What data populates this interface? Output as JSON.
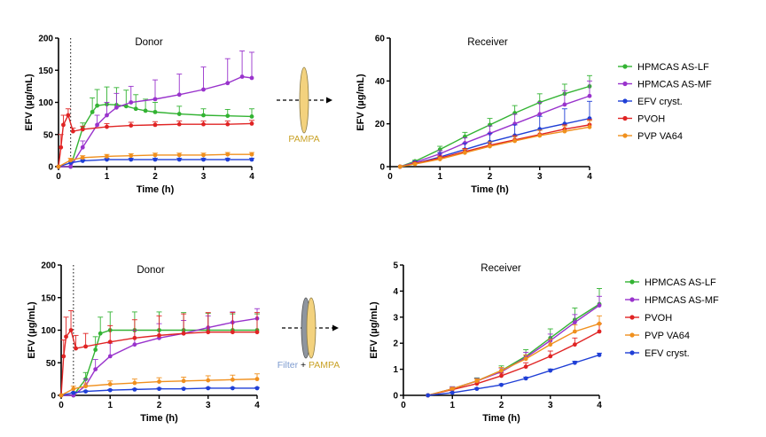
{
  "schematics": [
    {
      "label_parts": [
        {
          "text": "PAMPA",
          "color": "#c9a227"
        }
      ],
      "filter": false
    },
    {
      "label_parts": [
        {
          "text": "Filter",
          "color": "#7d9bcf"
        },
        {
          "text": " + ",
          "color": "#000000"
        },
        {
          "text": "PAMPA",
          "color": "#c9a227"
        }
      ],
      "filter": true
    }
  ],
  "legends": [
    [
      "HPMCAS AS-LF",
      "HPMCAS AS-MF",
      "EFV cryst.",
      "PVOH",
      "PVP VA64"
    ],
    [
      "HPMCAS AS-LF",
      "HPMCAS AS-MF",
      "PVOH",
      "PVP VA64",
      "EFV cryst."
    ]
  ],
  "colors": {
    "HPMCAS AS-LF": "#33b333",
    "HPMCAS AS-MF": "#9933cc",
    "EFV cryst.": "#1f3fd6",
    "PVOH": "#e02424",
    "PVP VA64": "#f0901e"
  },
  "chart_data": [
    {
      "type": "line",
      "title": "Donor",
      "xlabel": "Time (h)",
      "ylabel": "EFV (µg/mL)",
      "xlim": [
        0,
        4
      ],
      "ylim": [
        0,
        200
      ],
      "xticks": [
        0,
        1,
        2,
        3,
        4
      ],
      "yticks": [
        0,
        50,
        100,
        150,
        200
      ],
      "xticklabels": [
        "0",
        "1",
        "2",
        "3",
        "4"
      ],
      "yticklabels": [
        "0",
        "50",
        "100",
        "150",
        "200"
      ],
      "vline_x": 0.25,
      "series": [
        {
          "name": "HPMCAS AS-LF",
          "x": [
            0.0,
            0.25,
            0.5,
            0.7,
            0.8,
            1.0,
            1.2,
            1.4,
            1.6,
            1.8,
            2.0,
            2.5,
            3.0,
            3.5,
            4.0
          ],
          "y": [
            0,
            0,
            60,
            85,
            95,
            97,
            96,
            94,
            90,
            87,
            85,
            82,
            80,
            79,
            78
          ],
          "err": [
            0,
            0,
            8,
            22,
            25,
            27,
            27,
            25,
            22,
            18,
            15,
            12,
            10,
            10,
            12
          ]
        },
        {
          "name": "HPMCAS AS-MF",
          "x": [
            0.0,
            0.25,
            0.5,
            0.8,
            1.0,
            1.2,
            1.5,
            2.0,
            2.5,
            3.0,
            3.5,
            3.8,
            4.0
          ],
          "y": [
            0,
            0,
            30,
            65,
            80,
            92,
            100,
            105,
            112,
            120,
            130,
            140,
            138
          ],
          "err": [
            0,
            0,
            10,
            15,
            20,
            22,
            25,
            30,
            32,
            35,
            38,
            40,
            40
          ]
        },
        {
          "name": "EFV cryst.",
          "x": [
            0.0,
            0.25,
            0.5,
            1.0,
            1.5,
            2.0,
            2.5,
            3.0,
            3.5,
            4.0
          ],
          "y": [
            0,
            6,
            9,
            11,
            11,
            11,
            11,
            11,
            11,
            11
          ],
          "err": [
            0,
            2,
            2,
            2,
            2,
            2,
            2,
            2,
            2,
            2
          ]
        },
        {
          "name": "PVOH",
          "x": [
            0.0,
            0.05,
            0.1,
            0.2,
            0.3,
            0.5,
            1.0,
            1.5,
            2.0,
            2.5,
            3.0,
            3.5,
            4.0
          ],
          "y": [
            0,
            30,
            65,
            80,
            55,
            58,
            62,
            64,
            65,
            66,
            66,
            66,
            67
          ],
          "err": [
            0,
            20,
            15,
            10,
            5,
            5,
            5,
            5,
            5,
            5,
            5,
            5,
            5
          ]
        },
        {
          "name": "PVP VA64",
          "x": [
            0.0,
            0.25,
            0.5,
            1.0,
            1.5,
            2.0,
            2.5,
            3.0,
            3.5,
            4.0
          ],
          "y": [
            0,
            10,
            14,
            16,
            17,
            18,
            18,
            18,
            19,
            19
          ],
          "err": [
            0,
            3,
            3,
            3,
            3,
            3,
            3,
            3,
            3,
            3
          ]
        }
      ]
    },
    {
      "type": "line",
      "title": "Receiver",
      "xlabel": "Time (h)",
      "ylabel": "EFV (µg/mL)",
      "xlim": [
        0,
        4
      ],
      "ylim": [
        0,
        60
      ],
      "xticks": [
        0,
        1,
        2,
        3,
        4
      ],
      "yticks": [
        0,
        20,
        40,
        60
      ],
      "xticklabels": [
        "0",
        "1",
        "2",
        "3",
        "4"
      ],
      "yticklabels": [
        "0",
        "20",
        "40",
        "60"
      ],
      "series": [
        {
          "name": "HPMCAS AS-LF",
          "x": [
            0.2,
            0.5,
            1.0,
            1.5,
            2.0,
            2.5,
            3.0,
            3.5,
            4.0
          ],
          "y": [
            0,
            2.5,
            8,
            14,
            19.5,
            25,
            30,
            34,
            37.5
          ],
          "err": [
            0,
            0.5,
            1.5,
            2,
            3,
            3.5,
            4,
            4.5,
            5
          ]
        },
        {
          "name": "HPMCAS AS-MF",
          "x": [
            0.2,
            0.5,
            1.0,
            1.5,
            2.0,
            2.5,
            3.0,
            3.5,
            4.0
          ],
          "y": [
            0,
            2,
            6,
            11,
            15.5,
            20,
            24.5,
            29,
            33
          ],
          "err": [
            0,
            0.5,
            1.5,
            2.5,
            3.5,
            4.5,
            5.5,
            6.5,
            7
          ]
        },
        {
          "name": "EFV cryst.",
          "x": [
            0.2,
            0.5,
            1.0,
            1.5,
            2.0,
            2.5,
            3.0,
            3.5,
            4.0
          ],
          "y": [
            0,
            1.5,
            4.5,
            8,
            11.5,
            14.5,
            17.5,
            20,
            22.5
          ],
          "err": [
            0,
            1,
            2,
            3,
            4,
            5,
            6,
            7,
            8
          ]
        },
        {
          "name": "PVOH",
          "x": [
            0.2,
            0.5,
            1.0,
            1.5,
            2.0,
            2.5,
            3.0,
            3.5,
            4.0
          ],
          "y": [
            0,
            1.5,
            4,
            7,
            10,
            12.5,
            15,
            17.5,
            19.5
          ],
          "err": [
            0,
            0.5,
            1,
            1.5,
            1.5,
            2,
            2,
            2,
            2.5
          ]
        },
        {
          "name": "PVP VA64",
          "x": [
            0.2,
            0.5,
            1.0,
            1.5,
            2.0,
            2.5,
            3.0,
            3.5,
            4.0
          ],
          "y": [
            0,
            1.2,
            3.5,
            6.5,
            9.5,
            12,
            14.5,
            16.5,
            18.5
          ],
          "err": [
            0,
            0.5,
            1,
            1.5,
            2,
            2,
            2.5,
            2.5,
            3
          ]
        }
      ]
    },
    {
      "type": "line",
      "title": "Donor",
      "xlabel": "Time (h)",
      "ylabel": "EFV (µg/mL)",
      "xlim": [
        0,
        4
      ],
      "ylim": [
        0,
        200
      ],
      "xticks": [
        0,
        1,
        2,
        3,
        4
      ],
      "yticks": [
        0,
        50,
        100,
        150,
        200
      ],
      "xticklabels": [
        "0",
        "1",
        "2",
        "3",
        "4"
      ],
      "yticklabels": [
        "0",
        "50",
        "100",
        "150",
        "200"
      ],
      "vline_x": 0.25,
      "series": [
        {
          "name": "HPMCAS AS-LF",
          "x": [
            0.0,
            0.25,
            0.5,
            0.7,
            0.8,
            1.0,
            1.5,
            2.0,
            2.5,
            3.0,
            3.5,
            4.0
          ],
          "y": [
            0,
            0,
            25,
            70,
            95,
            100,
            100,
            100,
            100,
            100,
            100,
            100
          ],
          "err": [
            0,
            0,
            10,
            20,
            25,
            28,
            28,
            28,
            27,
            26,
            25,
            25
          ]
        },
        {
          "name": "HPMCAS AS-MF",
          "x": [
            0.0,
            0.25,
            0.5,
            0.7,
            1.0,
            1.5,
            2.0,
            2.5,
            3.0,
            3.5,
            4.0
          ],
          "y": [
            0,
            0,
            15,
            40,
            60,
            78,
            88,
            95,
            104,
            112,
            118
          ],
          "err": [
            0,
            0,
            10,
            15,
            20,
            22,
            22,
            20,
            18,
            16,
            15
          ]
        },
        {
          "name": "EFV cryst.",
          "x": [
            0.0,
            0.25,
            0.5,
            1.0,
            1.5,
            2.0,
            2.5,
            3.0,
            3.5,
            4.0
          ],
          "y": [
            0,
            4,
            6,
            8,
            9,
            10,
            10,
            11,
            11,
            11
          ],
          "err": [
            0,
            1,
            1,
            1,
            1,
            1,
            1,
            1,
            1,
            1
          ]
        },
        {
          "name": "PVOH",
          "x": [
            0.0,
            0.05,
            0.1,
            0.2,
            0.3,
            0.5,
            1.0,
            1.5,
            2.0,
            2.5,
            3.0,
            3.5,
            4.0
          ],
          "y": [
            0,
            60,
            90,
            100,
            72,
            75,
            82,
            88,
            92,
            95,
            97,
            97,
            97
          ],
          "err": [
            0,
            25,
            30,
            30,
            20,
            20,
            25,
            28,
            30,
            30,
            30,
            30,
            30
          ]
        },
        {
          "name": "PVP VA64",
          "x": [
            0.0,
            0.25,
            0.5,
            1.0,
            1.5,
            2.0,
            2.5,
            3.0,
            3.5,
            4.0
          ],
          "y": [
            0,
            10,
            14,
            17,
            19,
            21,
            22,
            23,
            24,
            25
          ],
          "err": [
            0,
            4,
            5,
            5,
            6,
            6,
            6,
            7,
            7,
            8
          ]
        }
      ]
    },
    {
      "type": "line",
      "title": "Receiver",
      "xlabel": "Time (h)",
      "ylabel": "EFV (µg/mL)",
      "xlim": [
        0,
        4
      ],
      "ylim": [
        0,
        5
      ],
      "xticks": [
        0,
        1,
        2,
        3,
        4
      ],
      "yticks": [
        0,
        1,
        2,
        3,
        4,
        5
      ],
      "xticklabels": [
        "0",
        "1",
        "2",
        "3",
        "4"
      ],
      "yticklabels": [
        "0",
        "1",
        "2",
        "3",
        "4",
        "5"
      ],
      "series": [
        {
          "name": "HPMCAS AS-LF",
          "x": [
            0.5,
            1.0,
            1.5,
            2.0,
            2.5,
            3.0,
            3.5,
            4.0
          ],
          "y": [
            0,
            0.25,
            0.55,
            0.95,
            1.5,
            2.2,
            2.9,
            3.5
          ],
          "err": [
            0,
            0.08,
            0.12,
            0.18,
            0.25,
            0.35,
            0.45,
            0.6
          ]
        },
        {
          "name": "HPMCAS AS-MF",
          "x": [
            0.5,
            1.0,
            1.5,
            2.0,
            2.5,
            3.0,
            3.5,
            4.0
          ],
          "y": [
            0,
            0.25,
            0.55,
            0.9,
            1.45,
            2.1,
            2.8,
            3.45
          ],
          "err": [
            0,
            0.08,
            0.1,
            0.15,
            0.2,
            0.25,
            0.3,
            0.35
          ]
        },
        {
          "name": "PVOH",
          "x": [
            0.5,
            1.0,
            1.5,
            2.0,
            2.5,
            3.0,
            3.5,
            4.0
          ],
          "y": [
            0,
            0.22,
            0.45,
            0.75,
            1.1,
            1.5,
            1.95,
            2.45
          ],
          "err": [
            0,
            0.05,
            0.08,
            0.1,
            0.15,
            0.2,
            0.25,
            0.3
          ]
        },
        {
          "name": "PVP VA64",
          "x": [
            0.5,
            1.0,
            1.5,
            2.0,
            2.5,
            3.0,
            3.5,
            4.0
          ],
          "y": [
            0,
            0.25,
            0.55,
            0.95,
            1.4,
            1.95,
            2.45,
            2.75
          ],
          "err": [
            0,
            0.05,
            0.08,
            0.12,
            0.15,
            0.2,
            0.25,
            0.3
          ]
        },
        {
          "name": "EFV cryst.",
          "x": [
            0.5,
            1.0,
            1.5,
            2.0,
            2.5,
            3.0,
            3.5,
            4.0
          ],
          "y": [
            0,
            0.1,
            0.25,
            0.4,
            0.65,
            0.95,
            1.25,
            1.55
          ],
          "err": [
            0,
            0.03,
            0.03,
            0.04,
            0.05,
            0.06,
            0.06,
            0.07
          ]
        }
      ]
    }
  ]
}
